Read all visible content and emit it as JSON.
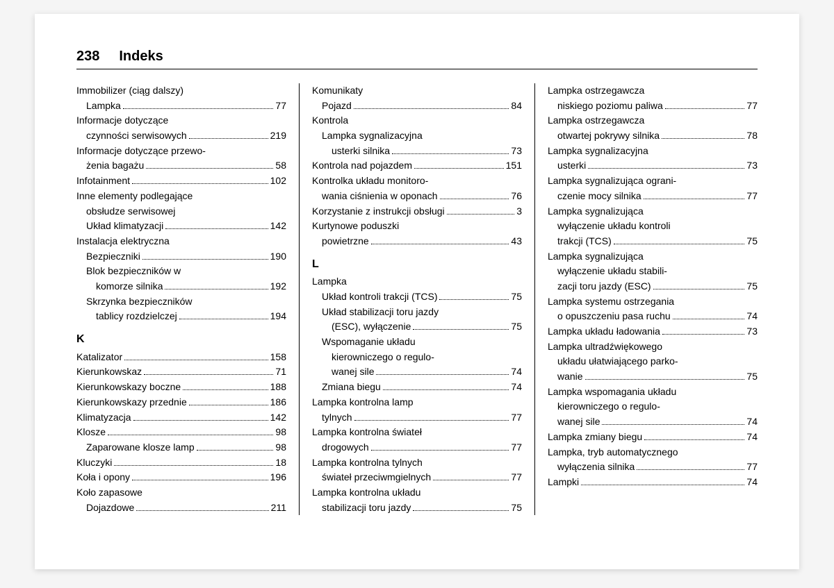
{
  "header": {
    "page_number": "238",
    "title": "Indeks"
  },
  "columns": [
    {
      "items": [
        {
          "type": "plain",
          "indent": 0,
          "text": "Immobilizer (ciąg dalszy)"
        },
        {
          "type": "entry",
          "indent": 1,
          "label": "Lampka",
          "page": "77"
        },
        {
          "type": "plain",
          "indent": 0,
          "text": "Informacje dotyczące"
        },
        {
          "type": "entry",
          "indent": 1,
          "label": "czynności serwisowych",
          "page": "219"
        },
        {
          "type": "plain",
          "indent": 0,
          "text": "Informacje dotyczące przewo-"
        },
        {
          "type": "entry",
          "indent": 1,
          "label": "żenia bagażu",
          "page": "58"
        },
        {
          "type": "entry",
          "indent": 0,
          "label": "Infotainment",
          "page": "102"
        },
        {
          "type": "plain",
          "indent": 0,
          "text": "Inne elementy podlegające"
        },
        {
          "type": "plain",
          "indent": 1,
          "text": "obsłudze serwisowej"
        },
        {
          "type": "entry",
          "indent": 1,
          "label": "Układ klimatyzacji",
          "page": "142"
        },
        {
          "type": "plain",
          "indent": 0,
          "text": "Instalacja elektryczna"
        },
        {
          "type": "entry",
          "indent": 1,
          "label": "Bezpieczniki",
          "page": "190"
        },
        {
          "type": "plain",
          "indent": 1,
          "text": "Blok bezpieczników w"
        },
        {
          "type": "entry",
          "indent": 2,
          "label": "komorze silnika",
          "page": "192"
        },
        {
          "type": "plain",
          "indent": 1,
          "text": "Skrzynka bezpieczników"
        },
        {
          "type": "entry",
          "indent": 2,
          "label": "tablicy rozdzielczej",
          "page": "194"
        },
        {
          "type": "heading",
          "text": "K"
        },
        {
          "type": "entry",
          "indent": 0,
          "label": "Katalizator",
          "page": "158"
        },
        {
          "type": "entry",
          "indent": 0,
          "label": "Kierunkowskaz",
          "page": "71"
        },
        {
          "type": "entry",
          "indent": 0,
          "label": "Kierunkowskazy boczne",
          "page": "188"
        },
        {
          "type": "entry",
          "indent": 0,
          "label": "Kierunkowskazy przednie",
          "page": "186"
        },
        {
          "type": "entry",
          "indent": 0,
          "label": "Klimatyzacja",
          "page": "142"
        },
        {
          "type": "entry",
          "indent": 0,
          "label": "Klosze",
          "page": "98"
        },
        {
          "type": "entry",
          "indent": 1,
          "label": "Zaparowane klosze lamp",
          "page": "98"
        },
        {
          "type": "entry",
          "indent": 0,
          "label": "Kluczyki",
          "page": "18"
        },
        {
          "type": "entry",
          "indent": 0,
          "label": "Koła i opony",
          "page": "196"
        },
        {
          "type": "plain",
          "indent": 0,
          "text": "Koło zapasowe"
        },
        {
          "type": "entry",
          "indent": 1,
          "label": "Dojazdowe",
          "page": "211"
        }
      ]
    },
    {
      "items": [
        {
          "type": "plain",
          "indent": 0,
          "text": "Komunikaty"
        },
        {
          "type": "entry",
          "indent": 1,
          "label": "Pojazd",
          "page": "84"
        },
        {
          "type": "plain",
          "indent": 0,
          "text": "Kontrola"
        },
        {
          "type": "plain",
          "indent": 1,
          "text": "Lampka sygnalizacyjna"
        },
        {
          "type": "entry",
          "indent": 2,
          "label": "usterki silnika",
          "page": "73"
        },
        {
          "type": "entry",
          "indent": 0,
          "label": "Kontrola nad pojazdem",
          "page": "151"
        },
        {
          "type": "plain",
          "indent": 0,
          "text": "Kontrolka układu monitoro-"
        },
        {
          "type": "entry",
          "indent": 1,
          "label": "wania ciśnienia w oponach",
          "page": "76"
        },
        {
          "type": "entry",
          "indent": 0,
          "label": "Korzystanie z instrukcji obsługi",
          "page": "3"
        },
        {
          "type": "plain",
          "indent": 0,
          "text": "Kurtynowe poduszki"
        },
        {
          "type": "entry",
          "indent": 1,
          "label": "powietrzne",
          "page": "43"
        },
        {
          "type": "heading",
          "text": "L"
        },
        {
          "type": "plain",
          "indent": 0,
          "text": "Lampka"
        },
        {
          "type": "entry",
          "indent": 1,
          "label": "Układ kontroli trakcji (TCS)",
          "page": "75"
        },
        {
          "type": "plain",
          "indent": 1,
          "text": "Układ stabilizacji toru jazdy"
        },
        {
          "type": "entry",
          "indent": 2,
          "label": "(ESC), wyłączenie",
          "page": "75"
        },
        {
          "type": "plain",
          "indent": 1,
          "text": "Wspomaganie układu"
        },
        {
          "type": "plain",
          "indent": 2,
          "text": "kierowniczego o regulo-"
        },
        {
          "type": "entry",
          "indent": 2,
          "label": "wanej sile",
          "page": "74"
        },
        {
          "type": "entry",
          "indent": 1,
          "label": "Zmiana biegu",
          "page": "74"
        },
        {
          "type": "plain",
          "indent": 0,
          "text": "Lampka kontrolna lamp"
        },
        {
          "type": "entry",
          "indent": 1,
          "label": "tylnych",
          "page": "77"
        },
        {
          "type": "plain",
          "indent": 0,
          "text": "Lampka kontrolna świateł"
        },
        {
          "type": "entry",
          "indent": 1,
          "label": "drogowych",
          "page": "77"
        },
        {
          "type": "plain",
          "indent": 0,
          "text": "Lampka kontrolna tylnych"
        },
        {
          "type": "entry",
          "indent": 1,
          "label": "świateł przeciwmgielnych",
          "page": "77"
        },
        {
          "type": "plain",
          "indent": 0,
          "text": "Lampka kontrolna układu"
        },
        {
          "type": "entry",
          "indent": 1,
          "label": "stabilizacji toru jazdy",
          "page": "75"
        }
      ]
    },
    {
      "items": [
        {
          "type": "plain",
          "indent": 0,
          "text": "Lampka ostrzegawcza"
        },
        {
          "type": "entry",
          "indent": 1,
          "label": "niskiego poziomu paliwa",
          "page": "77"
        },
        {
          "type": "plain",
          "indent": 0,
          "text": "Lampka ostrzegawcza"
        },
        {
          "type": "entry",
          "indent": 1,
          "label": "otwartej pokrywy silnika",
          "page": "78"
        },
        {
          "type": "plain",
          "indent": 0,
          "text": "Lampka sygnalizacyjna"
        },
        {
          "type": "entry",
          "indent": 1,
          "label": "usterki",
          "page": "73"
        },
        {
          "type": "plain",
          "indent": 0,
          "text": "Lampka sygnalizująca ograni-"
        },
        {
          "type": "entry",
          "indent": 1,
          "label": "czenie mocy silnika",
          "page": "77"
        },
        {
          "type": "plain",
          "indent": 0,
          "text": "Lampka sygnalizująca"
        },
        {
          "type": "plain",
          "indent": 1,
          "text": "wyłączenie układu kontroli"
        },
        {
          "type": "entry",
          "indent": 1,
          "label": "trakcji (TCS)",
          "page": "75"
        },
        {
          "type": "plain",
          "indent": 0,
          "text": "Lampka sygnalizująca"
        },
        {
          "type": "plain",
          "indent": 1,
          "text": "wyłączenie układu stabili-"
        },
        {
          "type": "entry",
          "indent": 1,
          "label": "zacji toru jazdy (ESC)",
          "page": "75"
        },
        {
          "type": "plain",
          "indent": 0,
          "text": "Lampka systemu ostrzegania"
        },
        {
          "type": "entry",
          "indent": 1,
          "label": "o opuszczeniu pasa ruchu",
          "page": "74"
        },
        {
          "type": "entry",
          "indent": 0,
          "label": "Lampka układu ładowania",
          "page": "73"
        },
        {
          "type": "plain",
          "indent": 0,
          "text": "Lampka ultradźwiękowego"
        },
        {
          "type": "plain",
          "indent": 1,
          "text": "układu ułatwiającego parko-"
        },
        {
          "type": "entry",
          "indent": 1,
          "label": "wanie",
          "page": "75"
        },
        {
          "type": "plain",
          "indent": 0,
          "text": "Lampka wspomagania układu"
        },
        {
          "type": "plain",
          "indent": 1,
          "text": "kierowniczego o regulo-"
        },
        {
          "type": "entry",
          "indent": 1,
          "label": "wanej sile",
          "page": "74"
        },
        {
          "type": "entry",
          "indent": 0,
          "label": "Lampka zmiany biegu",
          "page": "74"
        },
        {
          "type": "plain",
          "indent": 0,
          "text": "Lampka, tryb automatycznego"
        },
        {
          "type": "entry",
          "indent": 1,
          "label": "wyłączenia silnika",
          "page": "77"
        },
        {
          "type": "entry",
          "indent": 0,
          "label": "Lampki",
          "page": "74"
        }
      ]
    }
  ]
}
